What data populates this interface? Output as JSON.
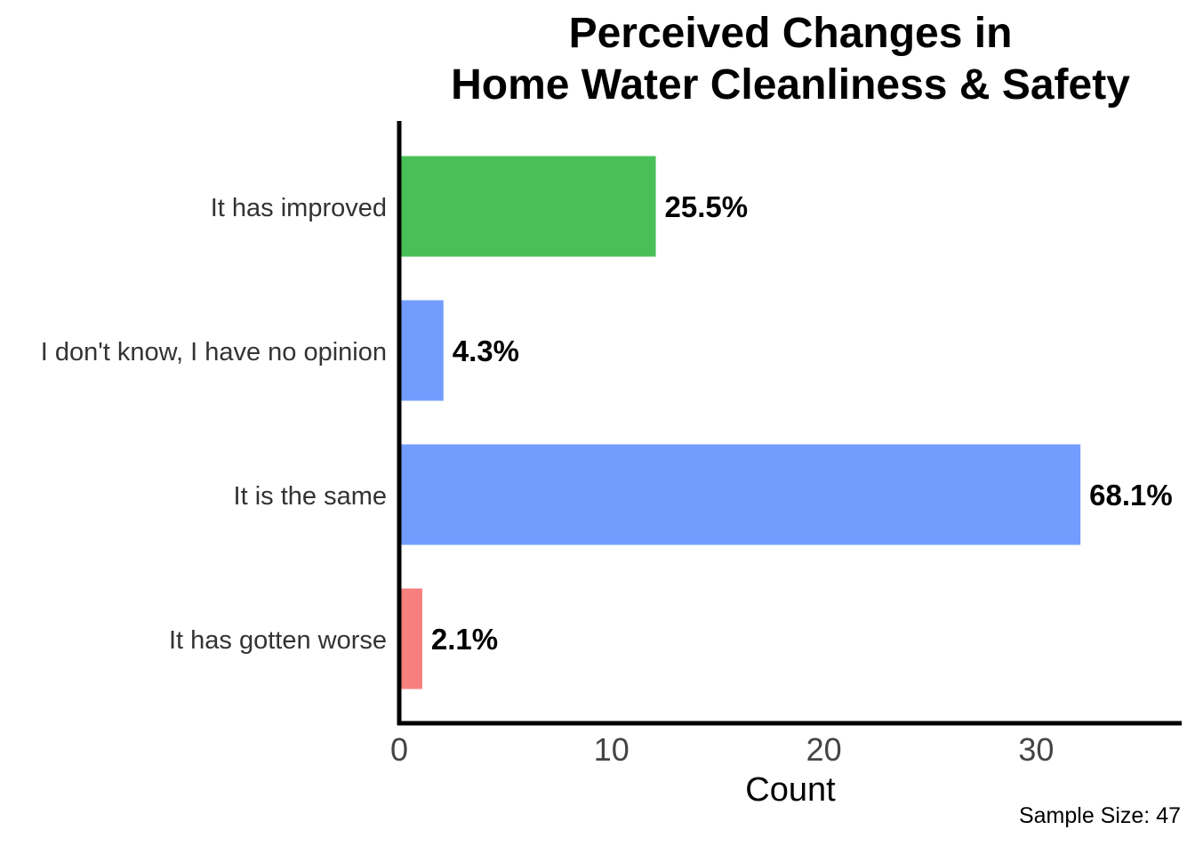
{
  "chart_data": {
    "type": "bar",
    "orientation": "horizontal",
    "title_lines": [
      "Perceived Changes in",
      "Home Water Cleanliness & Safety"
    ],
    "categories": [
      "It has improved",
      "I don't know, I have no opinion",
      "It is the same",
      "It has gotten worse"
    ],
    "values": [
      12,
      2,
      32,
      1
    ],
    "value_labels": [
      "25.5%",
      "4.3%",
      "68.1%",
      "2.1%"
    ],
    "colors": [
      "#48BF57",
      "#729DFE",
      "#729DFE",
      "#F77F7D"
    ],
    "xlabel": "Count",
    "ylabel": "",
    "xticks": [
      0,
      10,
      20,
      30
    ],
    "xlim": [
      0,
      36.8
    ],
    "grid": false,
    "note": "Sample Size: 47"
  }
}
